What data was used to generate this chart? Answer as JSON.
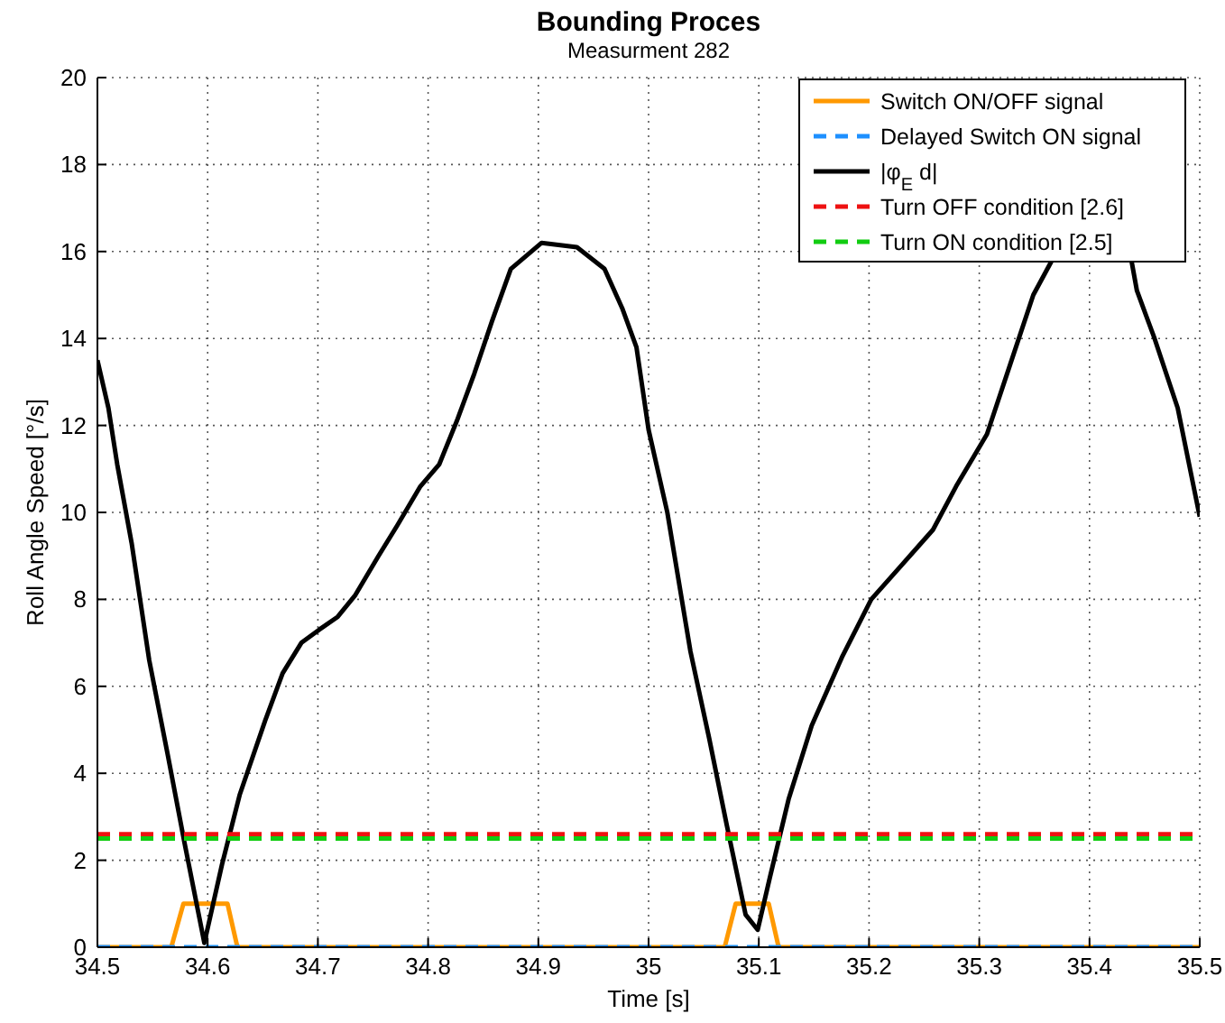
{
  "chart_data": {
    "type": "line",
    "title": "Bounding Proces",
    "subtitle": "Measurment 282",
    "xlabel": "Time [s]",
    "ylabel": "Roll Angle Speed [°/s]",
    "xlim": [
      34.5,
      35.5
    ],
    "xticks": [
      34.5,
      34.6,
      34.7,
      34.8,
      34.9,
      35,
      35.1,
      35.2,
      35.3,
      35.4,
      35.5
    ],
    "ylim": [
      0,
      20
    ],
    "yticks": [
      0,
      2,
      4,
      6,
      8,
      10,
      12,
      14,
      16,
      18,
      20
    ],
    "grid": true,
    "legend": "top right",
    "series": [
      {
        "name": "Switch ON/OFF signal",
        "color": "#ff9900",
        "line_style": "solid",
        "x": [
          34.5,
          34.567,
          34.578,
          34.618,
          34.627,
          35.069,
          35.079,
          35.109,
          35.118,
          35.5
        ],
        "values": [
          0,
          0,
          1,
          1,
          0,
          0,
          1,
          1,
          0,
          0
        ]
      },
      {
        "name": "Delayed Switch ON signal",
        "color": "#1e90ff",
        "line_style": "dashed",
        "x": [
          34.5,
          35.5
        ],
        "values": [
          0,
          0
        ]
      },
      {
        "name": "|φ$_{E}$ d|",
        "color": "#000000",
        "line_style": "solid",
        "x": [
          34.5,
          34.51,
          34.518,
          34.531,
          34.547,
          34.564,
          34.579,
          34.597,
          34.613,
          34.629,
          34.652,
          34.668,
          34.685,
          34.701,
          34.718,
          34.734,
          34.755,
          34.772,
          34.793,
          34.81,
          34.826,
          34.842,
          34.858,
          34.875,
          34.903,
          34.935,
          34.96,
          34.976,
          34.989,
          35.0,
          35.017,
          35.038,
          35.055,
          35.071,
          35.088,
          35.099,
          35.11,
          35.127,
          35.148,
          35.176,
          35.202,
          35.23,
          35.258,
          35.279,
          35.307,
          35.328,
          35.349,
          35.366,
          35.4,
          35.438,
          35.443,
          35.459,
          35.48,
          35.5
        ],
        "values": [
          13.5,
          12.4,
          11.1,
          9.3,
          6.6,
          4.4,
          2.4,
          0.1,
          1.9,
          3.5,
          5.2,
          6.3,
          7.0,
          7.3,
          7.6,
          8.1,
          9.0,
          9.7,
          10.6,
          11.1,
          12.1,
          13.2,
          14.4,
          15.6,
          16.2,
          16.1,
          15.6,
          14.7,
          13.8,
          11.9,
          10.0,
          6.8,
          4.8,
          2.8,
          0.75,
          0.4,
          1.6,
          3.4,
          5.1,
          6.7,
          8.0,
          8.8,
          9.6,
          10.6,
          11.8,
          13.4,
          15.0,
          15.8,
          null,
          15.8,
          15.1,
          14.0,
          12.4,
          9.9
        ]
      },
      {
        "name": "Turn OFF condition [2.6]",
        "color": "#ee1111",
        "line_style": "dashed",
        "x": [
          34.5,
          35.5
        ],
        "values": [
          2.6,
          2.6
        ]
      },
      {
        "name": "Turn ON condition [2.5]",
        "color": "#11cc11",
        "line_style": "dashed",
        "x": [
          34.5,
          35.5
        ],
        "values": [
          2.5,
          2.5
        ]
      }
    ]
  }
}
